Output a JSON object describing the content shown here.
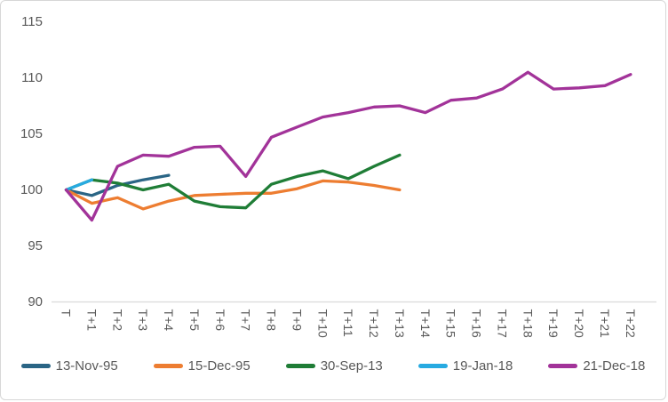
{
  "chart_data": {
    "type": "line",
    "title": "",
    "xlabel": "",
    "ylabel": "",
    "categories": [
      "T",
      "T+1",
      "T+2",
      "T+3",
      "T+4",
      "T+5",
      "T+6",
      "T+7",
      "T+8",
      "T+9",
      "T+10",
      "T+11",
      "T+12",
      "T+13",
      "T+14",
      "T+15",
      "T+16",
      "T+17",
      "T+18",
      "T+19",
      "T+20",
      "T+21",
      "T+22"
    ],
    "series": [
      {
        "name": "13-Nov-95",
        "color": "#2A6585",
        "values": [
          100,
          99.5,
          100.4,
          100.9,
          101.3
        ]
      },
      {
        "name": "15-Dec-95",
        "color": "#ED7D31",
        "values": [
          100,
          98.8,
          99.3,
          98.3,
          99.0,
          99.5,
          99.6,
          99.7,
          99.7,
          100.1,
          100.8,
          100.7,
          100.4,
          100.0
        ]
      },
      {
        "name": "30-Sep-13",
        "color": "#1F7D36",
        "values": [
          100,
          100.9,
          100.6,
          100.0,
          100.5,
          99.0,
          98.5,
          98.4,
          100.5,
          101.2,
          101.7,
          101.0,
          102.1,
          103.1
        ]
      },
      {
        "name": "19-Jan-18",
        "color": "#27AAE1",
        "values": [
          100,
          100.9
        ]
      },
      {
        "name": "21-Dec-18",
        "color": "#A23399",
        "values": [
          100,
          97.3,
          102.1,
          103.1,
          103.0,
          103.8,
          103.9,
          101.2,
          104.7,
          105.6,
          106.5,
          106.9,
          107.4,
          107.5,
          106.9,
          108.0,
          108.2,
          109.0,
          110.5,
          109.0,
          109.1,
          109.3,
          110.3
        ]
      }
    ],
    "ylim": [
      90,
      115
    ],
    "yticks": [
      90,
      95,
      100,
      105,
      110,
      115
    ],
    "grid": false,
    "legend_position": "bottom",
    "x_label_rotation": 90
  },
  "colors": {
    "axis_text": "#595959",
    "axis_line": "#D9D9D9",
    "background": "#FFFFFF",
    "frame_border": "#D7D7D7"
  }
}
